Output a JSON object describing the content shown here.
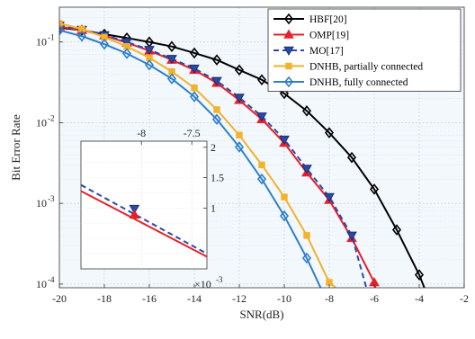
{
  "chart_data": {
    "type": "line",
    "xlabel": "SNR(dB)",
    "ylabel": "Bit Error Rate",
    "xlim": [
      -20,
      -2
    ],
    "ylim": [
      9e-05,
      0.27
    ],
    "yscale": "log",
    "grid": true,
    "xticks": [
      -20,
      -18,
      -16,
      -14,
      -12,
      -10,
      -8,
      -6,
      -4,
      -2
    ],
    "xtick_labels": [
      "-20",
      "-18",
      "-16",
      "-14",
      "-12",
      "-10",
      "-8",
      "-6",
      "-4",
      "-2"
    ],
    "yticks": [
      0.0001,
      0.001,
      0.01,
      0.1
    ],
    "ytick_labels": [
      "10",
      "10",
      "10",
      "10"
    ],
    "ytick_exponents": [
      "-4",
      "-3",
      "-2",
      "-1"
    ],
    "legend_placement": "top-right",
    "series": [
      {
        "name": "HBF[20]",
        "color": "#000000",
        "marker": "diamond",
        "dash": "solid",
        "x": [
          -20,
          -19,
          -18,
          -17,
          -16,
          -15,
          -14,
          -13,
          -12,
          -11,
          -10,
          -9,
          -8,
          -7,
          -6,
          -5,
          -4,
          -3.7
        ],
        "y": [
          0.15,
          0.14,
          0.125,
          0.112,
          0.1,
          0.088,
          0.073,
          0.06,
          0.045,
          0.034,
          0.023,
          0.014,
          0.0075,
          0.0037,
          0.0015,
          0.00047,
          0.00013,
          8e-05
        ]
      },
      {
        "name": "OMP[19]",
        "color": "#e8202a",
        "marker": "triangle-up",
        "dash": "solid",
        "x": [
          -20,
          -19,
          -18,
          -17,
          -16,
          -15,
          -14,
          -13,
          -12,
          -11,
          -10,
          -9,
          -8,
          -7,
          -6,
          -5.9
        ],
        "y": [
          0.155,
          0.14,
          0.12,
          0.098,
          0.078,
          0.06,
          0.045,
          0.031,
          0.019,
          0.011,
          0.0056,
          0.0024,
          0.0011,
          0.00037,
          0.000105,
          8e-05
        ]
      },
      {
        "name": "MO[17]",
        "color": "#2a4aa8",
        "marker": "triangle-down",
        "dash": "dashed",
        "x": [
          -20,
          -19,
          -18,
          -17,
          -16,
          -15,
          -14,
          -13,
          -12,
          -11,
          -10,
          -9,
          -8,
          -7,
          -6.3
        ],
        "y": [
          0.16,
          0.142,
          0.122,
          0.1,
          0.08,
          0.062,
          0.047,
          0.033,
          0.0205,
          0.012,
          0.0062,
          0.0027,
          0.0012,
          0.0004,
          8e-05
        ]
      },
      {
        "name": "DNHB, partially connected",
        "color": "#f2b22a",
        "marker": "square",
        "dash": "solid",
        "x": [
          -20,
          -19,
          -18,
          -17,
          -16,
          -15,
          -14,
          -13,
          -12,
          -11,
          -10,
          -9,
          -8,
          -7.5
        ],
        "y": [
          0.17,
          0.145,
          0.115,
          0.088,
          0.064,
          0.043,
          0.027,
          0.0145,
          0.007,
          0.003,
          0.0012,
          0.0004,
          0.000105,
          8e-05
        ]
      },
      {
        "name": "DNHB, fully connected",
        "color": "#2f7fc9",
        "marker": "diamond",
        "dash": "solid",
        "x": [
          -20,
          -19,
          -18,
          -17,
          -16,
          -15,
          -14,
          -13,
          -12,
          -11,
          -10,
          -9,
          -8.3
        ],
        "y": [
          0.14,
          0.118,
          0.094,
          0.072,
          0.052,
          0.035,
          0.021,
          0.011,
          0.005,
          0.002,
          0.0007,
          0.00021,
          8e-05
        ]
      }
    ],
    "inset": {
      "xlim": [
        -8.6,
        -7.35
      ],
      "ylim": [
        0.0002,
        2.1
      ],
      "xticks": [
        -8,
        -7.5
      ],
      "xtick_labels": [
        "-8",
        "-7.5"
      ],
      "yticks": [
        1,
        1.5,
        2
      ],
      "ytick_labels": [
        "1",
        "1.5",
        "2"
      ],
      "exponent_label": "×10",
      "exponent_power": "-3",
      "series": [
        {
          "name": "MO[17]",
          "x": [
            -8.6,
            -7.35
          ],
          "y": [
            1.38,
            0.25
          ]
        },
        {
          "name": "OMP[19]",
          "x": [
            -8.6,
            -7.35
          ],
          "y": [
            1.28,
            0.2
          ]
        }
      ],
      "markers": [
        {
          "series": "MO[17]",
          "x": [
            -8.07
          ],
          "y": [
            0.99
          ]
        },
        {
          "series": "OMP[19]",
          "x": [
            -8.07
          ],
          "y": [
            0.89
          ]
        }
      ]
    }
  }
}
